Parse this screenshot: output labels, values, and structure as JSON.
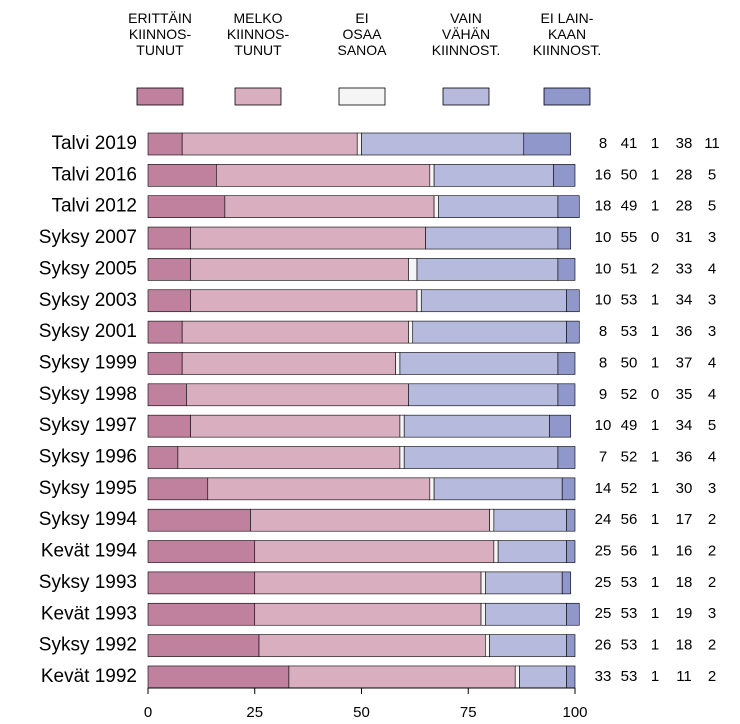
{
  "chart_data": {
    "type": "bar",
    "orientation": "horizontal",
    "stacked": true,
    "categories": [
      "Talvi 2019",
      "Talvi 2016",
      "Talvi 2012",
      "Syksy 2007",
      "Syksy 2005",
      "Syksy 2003",
      "Syksy 2001",
      "Syksy 1999",
      "Syksy 1998",
      "Syksy 1997",
      "Syksy 1996",
      "Syksy 1995",
      "Syksy 1994",
      "Kevät 1994",
      "Syksy 1993",
      "Kevät 1993",
      "Syksy 1992",
      "Kevät 1992"
    ],
    "series": [
      {
        "name": "ERITTÄIN\nKIINNOS-\nTUNUT",
        "color": "#c0819f",
        "values": [
          8,
          16,
          18,
          10,
          10,
          10,
          8,
          8,
          9,
          10,
          7,
          14,
          24,
          25,
          25,
          25,
          26,
          33
        ]
      },
      {
        "name": "MELKO\nKIINNOS-\nTUNUT",
        "color": "#d9afc0",
        "values": [
          41,
          50,
          49,
          55,
          51,
          53,
          53,
          50,
          52,
          49,
          52,
          52,
          56,
          56,
          53,
          53,
          53,
          53
        ]
      },
      {
        "name": "EI\nOSAA\nSANOA",
        "color": "#f5f5f5",
        "values": [
          1,
          1,
          1,
          0,
          2,
          1,
          1,
          1,
          0,
          1,
          1,
          1,
          1,
          1,
          1,
          1,
          1,
          1
        ]
      },
      {
        "name": "VAIN\nVÄHÄN\nKIINNOST.",
        "color": "#b6badd",
        "values": [
          38,
          28,
          28,
          31,
          33,
          34,
          36,
          37,
          35,
          34,
          36,
          30,
          17,
          16,
          18,
          19,
          18,
          11
        ]
      },
      {
        "name": "EI LAIN-\nKAAN\nKIINNOST.",
        "color": "#8f97cb",
        "values": [
          11,
          5,
          5,
          3,
          4,
          3,
          3,
          4,
          4,
          5,
          4,
          3,
          2,
          2,
          2,
          3,
          2,
          2
        ]
      }
    ],
    "xlim": [
      0,
      100
    ],
    "xticks": [
      0,
      25,
      50,
      75,
      100
    ]
  }
}
